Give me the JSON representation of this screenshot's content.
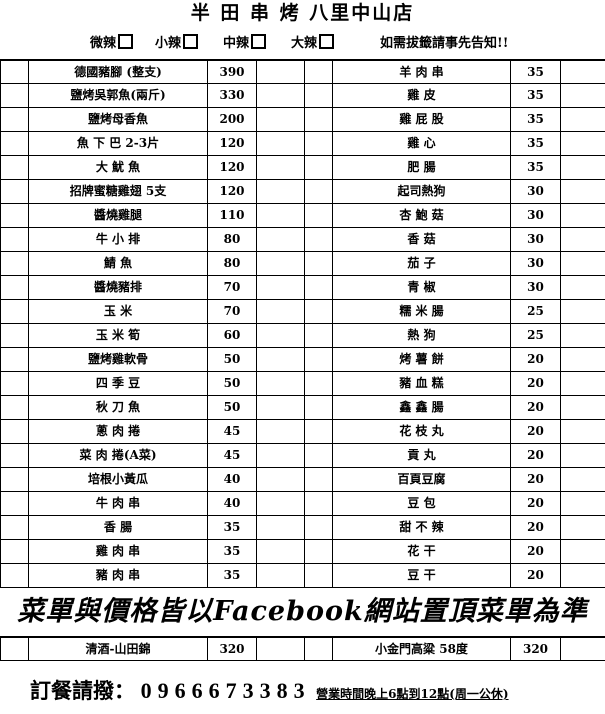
{
  "header": {
    "title": "半 田 串 烤  八里中山店",
    "spice_levels": [
      "微辣",
      "小辣",
      "中辣",
      "大辣"
    ],
    "note": "如需拔籤請事先告知!!"
  },
  "menu": {
    "rows": [
      {
        "left": {
          "name": "德國豬腳 (整支)",
          "price": 390
        },
        "right": {
          "name": "羊 肉 串",
          "price": 35
        }
      },
      {
        "left": {
          "name": "鹽烤吳郭魚(兩斤)",
          "price": 330
        },
        "right": {
          "name": "雞 皮",
          "price": 35
        }
      },
      {
        "left": {
          "name": "鹽烤母香魚",
          "price": 200
        },
        "right": {
          "name": "雞 屁 股",
          "price": 35
        }
      },
      {
        "left": {
          "name": "魚 下 巴 2-3片",
          "price": 120
        },
        "right": {
          "name": "雞 心",
          "price": 35
        }
      },
      {
        "left": {
          "name": "大 魷 魚",
          "price": 120
        },
        "right": {
          "name": "肥 腸",
          "price": 35
        }
      },
      {
        "left": {
          "name": "招牌蜜糖雞翅 5支",
          "price": 120
        },
        "right": {
          "name": "起司熱狗",
          "price": 30
        }
      },
      {
        "left": {
          "name": "醬燒雞腿",
          "price": 110
        },
        "right": {
          "name": "杏 鮑 菇",
          "price": 30
        }
      },
      {
        "left": {
          "name": "牛 小 排",
          "price": 80
        },
        "right": {
          "name": "香 菇",
          "price": 30
        }
      },
      {
        "left": {
          "name": "鯖 魚",
          "price": 80
        },
        "right": {
          "name": "茄 子",
          "price": 30
        }
      },
      {
        "left": {
          "name": "醬燒豬排",
          "price": 70
        },
        "right": {
          "name": "青 椒",
          "price": 30
        }
      },
      {
        "left": {
          "name": "玉 米",
          "price": 70
        },
        "right": {
          "name": "糯 米 腸",
          "price": 25
        }
      },
      {
        "left": {
          "name": "玉 米 筍",
          "price": 60
        },
        "right": {
          "name": "熱 狗",
          "price": 25
        }
      },
      {
        "left": {
          "name": "鹽烤雞軟骨",
          "price": 50
        },
        "right": {
          "name": "烤 薯 餅",
          "price": 20
        }
      },
      {
        "left": {
          "name": "四 季 豆",
          "price": 50
        },
        "right": {
          "name": "豬 血 糕",
          "price": 20
        }
      },
      {
        "left": {
          "name": "秋 刀 魚",
          "price": 50
        },
        "right": {
          "name": "鑫 鑫 腸",
          "price": 20
        }
      },
      {
        "left": {
          "name": "蔥 肉 捲",
          "price": 45
        },
        "right": {
          "name": "花 枝 丸",
          "price": 20
        }
      },
      {
        "left": {
          "name": "菜 肉 捲(A菜)",
          "price": 45
        },
        "right": {
          "name": "貢 丸",
          "price": 20
        }
      },
      {
        "left": {
          "name": "培根小黃瓜",
          "price": 40
        },
        "right": {
          "name": "百頁豆腐",
          "price": 20
        }
      },
      {
        "left": {
          "name": "牛 肉 串",
          "price": 40
        },
        "right": {
          "name": "豆 包",
          "price": 20
        }
      },
      {
        "left": {
          "name": "香 腸",
          "price": 35
        },
        "right": {
          "name": "甜 不 辣",
          "price": 20
        }
      },
      {
        "left": {
          "name": "雞 肉 串",
          "price": 35
        },
        "right": {
          "name": "花 干",
          "price": 20
        }
      },
      {
        "left": {
          "name": "豬 肉 串",
          "price": 35
        },
        "right": {
          "name": "豆 干",
          "price": 20
        }
      }
    ]
  },
  "banner": "菜單與價格皆以Facebook網站置頂菜單為準",
  "drinks": {
    "rows": [
      {
        "left": {
          "name": "清酒-山田錦",
          "price": 320
        },
        "right": {
          "name": "小金門高粱 58度",
          "price": 320
        }
      }
    ]
  },
  "footer": {
    "phone_label": "訂餐請撥：",
    "phone": "0966673383",
    "hours": "營業時間晚上6點到12點(周一公休)"
  }
}
